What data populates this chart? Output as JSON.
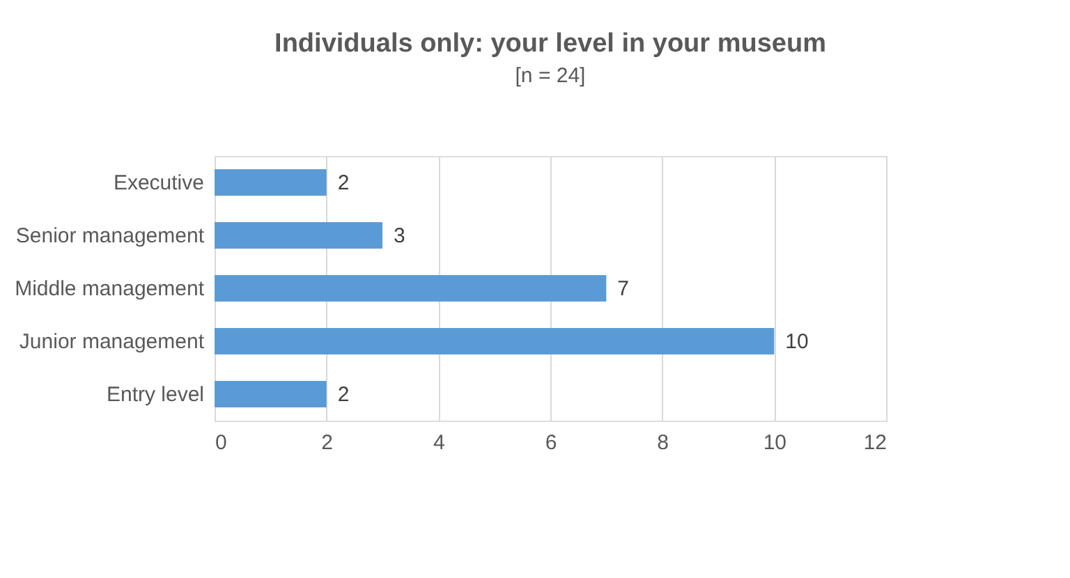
{
  "chart_data": {
    "type": "bar",
    "orientation": "horizontal",
    "title": "Individuals only: your level in your museum",
    "subtitle": "[n = 24]",
    "categories": [
      "Executive",
      "Senior management",
      "Middle management",
      "Junior management",
      "Entry level"
    ],
    "values": [
      2,
      3,
      7,
      10,
      2
    ],
    "color": "#5b9bd5",
    "xlim": [
      0,
      12
    ],
    "xticks": [
      0,
      2,
      4,
      6,
      8,
      10,
      12
    ],
    "grid": "x",
    "data_labels": true
  }
}
